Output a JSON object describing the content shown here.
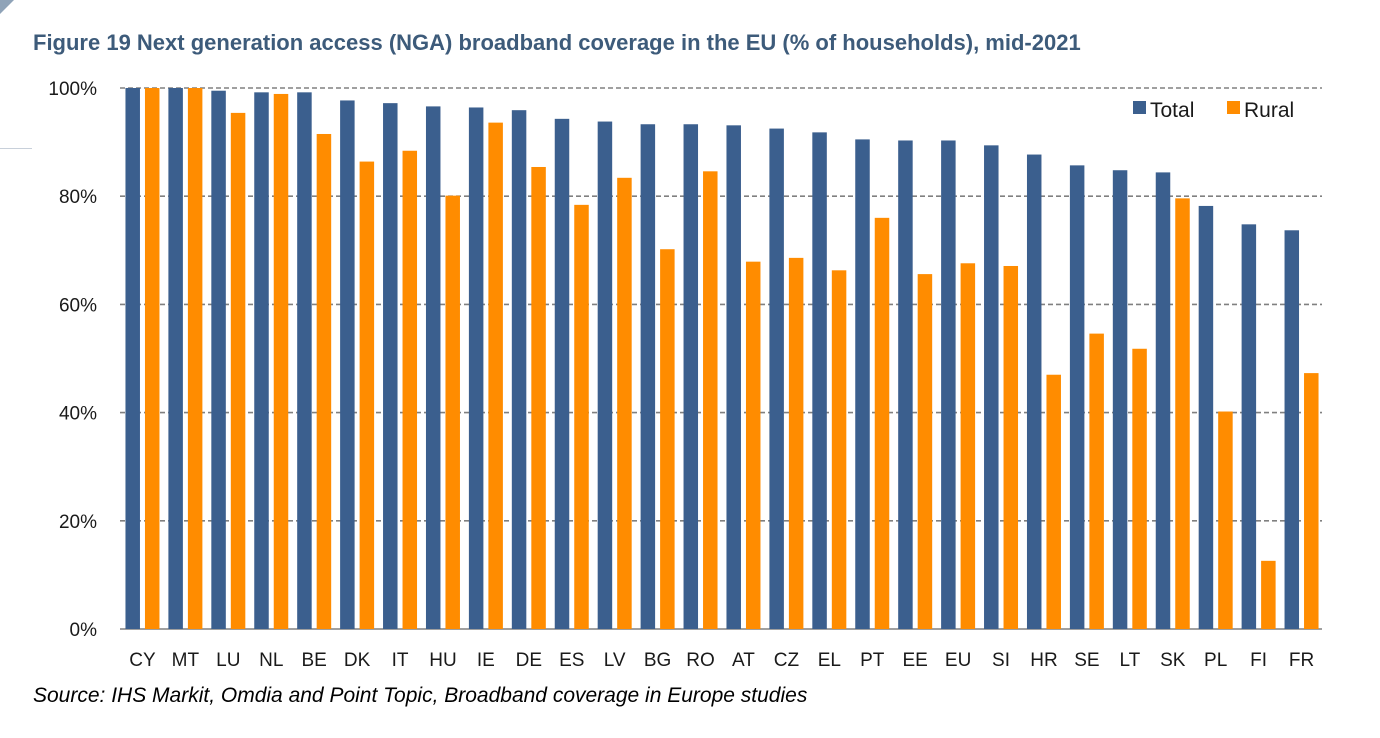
{
  "title": "Figure 19 Next generation access (NGA) broadband coverage in the EU (% of households), mid-2021",
  "source": "Source: IHS Markit, Omdia and Point Topic, Broadband coverage in Europe studies",
  "colors": {
    "total": "#3b5f8e",
    "rural": "#ff8c00",
    "grid": "#808080",
    "axis": "#808080"
  },
  "chart_data": {
    "type": "bar",
    "title": "Figure 19 Next generation access (NGA) broadband coverage in the EU (% of households), mid-2021",
    "xlabel": "",
    "ylabel": "",
    "ylim": [
      0,
      100
    ],
    "yticks": [
      "0%",
      "20%",
      "40%",
      "60%",
      "80%",
      "100%"
    ],
    "grid": true,
    "legend_position": "top-right",
    "categories": [
      "CY",
      "MT",
      "LU",
      "NL",
      "BE",
      "DK",
      "IT",
      "HU",
      "IE",
      "DE",
      "ES",
      "LV",
      "BG",
      "RO",
      "AT",
      "CZ",
      "EL",
      "PT",
      "EE",
      "EU",
      "SI",
      "HR",
      "SE",
      "LT",
      "SK",
      "PL",
      "FI",
      "FR"
    ],
    "series": [
      {
        "name": "Total",
        "values": [
          100,
          100,
          99.5,
          99.2,
          99.2,
          97.7,
          97.2,
          96.6,
          96.4,
          95.9,
          94.3,
          93.8,
          93.3,
          93.3,
          93.1,
          92.5,
          91.8,
          90.5,
          90.3,
          90.3,
          89.4,
          87.7,
          85.7,
          84.8,
          84.4,
          78.2,
          74.8,
          73.7
        ]
      },
      {
        "name": "Rural",
        "values": [
          100,
          100,
          95.4,
          98.9,
          91.5,
          86.4,
          88.4,
          80.1,
          93.6,
          85.4,
          78.4,
          83.4,
          70.2,
          84.6,
          67.9,
          68.6,
          66.3,
          76.0,
          65.6,
          67.6,
          67.1,
          47.0,
          54.6,
          51.8,
          79.6,
          40.2,
          12.6,
          47.3
        ]
      }
    ]
  }
}
